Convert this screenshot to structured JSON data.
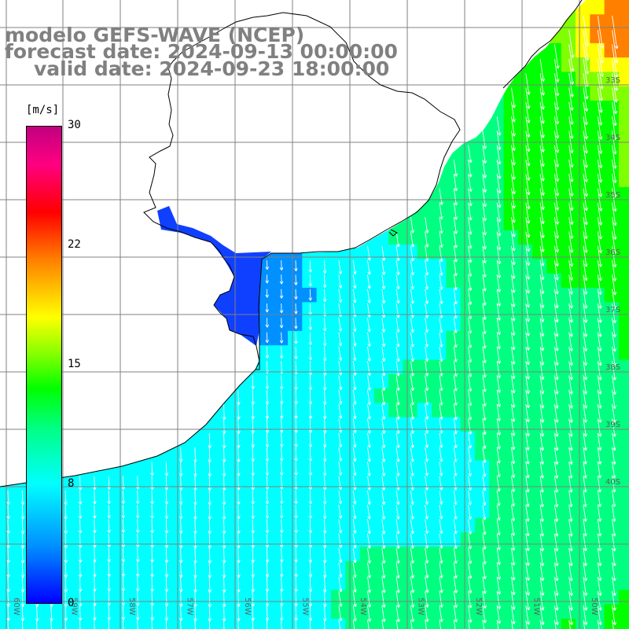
{
  "title": {
    "line1": "modelo GEFS-WAVE (NCEP)",
    "line2": "forecast date: 2024-09-13 00:00:00",
    "line3": "valid date: 2024-09-23 18:00:00"
  },
  "colorbar": {
    "unit": "[m/s]",
    "ticks": [
      "30",
      "22",
      "15",
      "8",
      "0"
    ],
    "tick_values": [
      30,
      22,
      15,
      8,
      0
    ],
    "colors": [
      "#0000ff",
      "#0090ff",
      "#00ffff",
      "#00ff80",
      "#00ff00",
      "#80ff00",
      "#ffff00",
      "#ff8000",
      "#ff0000",
      "#ff0080",
      "#c00080"
    ]
  },
  "map": {
    "land_color": "#ffffff",
    "coastline_color": "#000000",
    "grid_color": "#808080",
    "longitude_labels": [
      "60W",
      "59W",
      "58W",
      "57W",
      "56W",
      "55W",
      "54W",
      "53W",
      "52W",
      "51W",
      "50W"
    ],
    "latitude_labels": [
      "33S",
      "34S",
      "35S",
      "36S",
      "37S",
      "38S",
      "39S",
      "40S"
    ]
  }
}
